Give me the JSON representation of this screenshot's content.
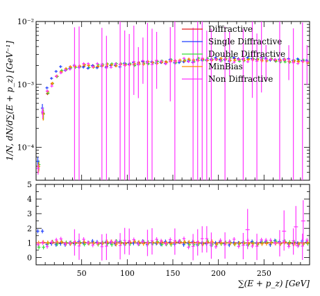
{
  "chart_data": [
    {
      "type": "scatter",
      "panel": "main",
      "ylabel": "1/N, dN/d∑(E + p_z) [GeV⁻¹]",
      "yscale": "log",
      "ylim": [
        3e-05,
        0.01
      ],
      "xlim": [
        0,
        300
      ],
      "yticks": [
        "10⁻⁴",
        "10⁻³",
        "10⁻²"
      ],
      "legend_position": "top-right",
      "series": [
        {
          "name": "Diffractive",
          "color": "#e41a1c"
        },
        {
          "name": "Single Diffractive",
          "color": "#1f3fff"
        },
        {
          "name": "Double Diffractive",
          "color": "#33dd33"
        },
        {
          "name": "MinBias",
          "color": "#ff8c00"
        },
        {
          "name": "Non Diffractive",
          "color": "#ff33ff"
        }
      ],
      "base_curve": {
        "x": [
          2.5,
          5,
          7.5,
          10,
          15,
          20,
          25,
          30,
          40,
          50,
          60,
          80,
          100,
          120,
          140,
          160,
          180,
          200,
          220,
          240,
          260,
          280,
          297.5
        ],
        "y": [
          5e-05,
          0.00017,
          0.00035,
          0.0006,
          0.0009,
          0.0012,
          0.0015,
          0.0017,
          0.0019,
          0.002,
          0.00195,
          0.002,
          0.0021,
          0.0022,
          0.0023,
          0.0024,
          0.00245,
          0.0025,
          0.0025,
          0.0025,
          0.00245,
          0.0024,
          0.0023
        ]
      },
      "non_diffractive_dips": [
        45,
        72,
        77,
        92,
        100,
        125,
        152,
        172,
        180,
        186,
        190,
        208,
        226,
        241,
        266,
        282,
        292
      ]
    },
    {
      "type": "scatter",
      "panel": "ratio",
      "xlabel": "∑(E + p_z) [GeV]",
      "ylim": [
        -0.5,
        5
      ],
      "xlim": [
        0,
        300
      ],
      "xticks": [
        50,
        100,
        150,
        200,
        250
      ],
      "yticks": [
        0,
        1,
        2,
        3,
        4,
        5
      ],
      "reference": 1,
      "spread": {
        "Single Diffractive": 0.15,
        "Double Diffractive": 0.12,
        "MinBias": 0.1,
        "Non Diffractive": 0.3
      },
      "non_diffractive_high": [
        {
          "x": 232,
          "y": 1.9
        },
        {
          "x": 272,
          "y": 1.8
        },
        {
          "x": 285,
          "y": 2.1
        },
        {
          "x": 293,
          "y": 2.5
        }
      ]
    }
  ]
}
